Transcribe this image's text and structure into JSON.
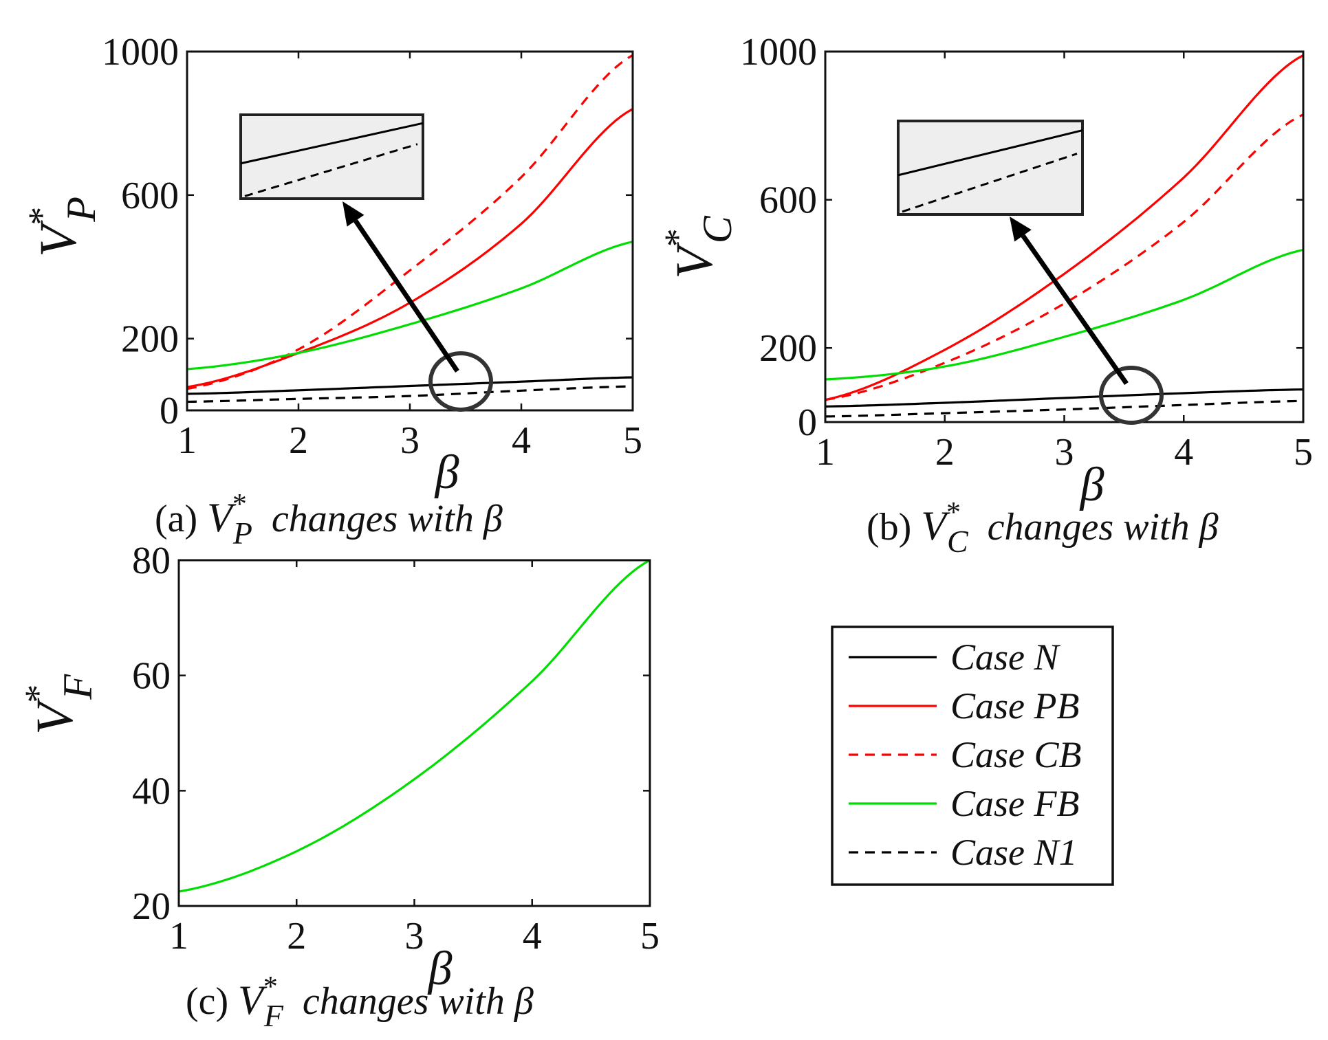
{
  "chart_data": [
    {
      "panel": "a",
      "type": "line",
      "xlabel": "β",
      "ylabel": {
        "base": "V",
        "sup": "*",
        "sub": "P"
      },
      "caption": {
        "prefix": "(a)",
        "base": "V",
        "sup": "*",
        "sub": "P",
        "text": "changes with",
        "symbol": "β"
      },
      "xlim": [
        1,
        5
      ],
      "ylim": [
        0,
        1000
      ],
      "xticks": [
        "1",
        "2",
        "3",
        "4",
        "5"
      ],
      "yticks": [
        "0",
        "200",
        "600",
        "1000"
      ],
      "x": [
        1,
        2,
        3,
        4,
        5
      ],
      "series": [
        {
          "name": "Case N",
          "color": "#000000",
          "dash": "solid",
          "values": [
            46,
            56,
            68,
            80,
            92
          ]
        },
        {
          "name": "Case PB",
          "color": "#ff0000",
          "dash": "solid",
          "values": [
            65,
            160,
            300,
            520,
            840
          ]
        },
        {
          "name": "Case CB",
          "color": "#ff0000",
          "dash": "dashed",
          "values": [
            60,
            170,
            390,
            650,
            990
          ]
        },
        {
          "name": "Case FB",
          "color": "#00dd00",
          "dash": "solid",
          "values": [
            115,
            160,
            240,
            340,
            470
          ]
        },
        {
          "name": "Case N1",
          "color": "#000000",
          "dash": "dashed",
          "values": [
            24,
            32,
            40,
            55,
            67
          ]
        }
      ]
    },
    {
      "panel": "b",
      "type": "line",
      "xlabel": "β",
      "ylabel": {
        "base": "V",
        "sup": "*",
        "sub": "C"
      },
      "caption": {
        "prefix": "(b)",
        "base": "V",
        "sup": "*",
        "sub": "C",
        "text": "changes with",
        "symbol": "β"
      },
      "xlim": [
        1,
        5
      ],
      "ylim": [
        0,
        1000
      ],
      "xticks": [
        "1",
        "2",
        "3",
        "4",
        "5"
      ],
      "yticks": [
        "0",
        "200",
        "600",
        "1000"
      ],
      "x": [
        1,
        2,
        3,
        4,
        5
      ],
      "series": [
        {
          "name": "Case N",
          "color": "#000000",
          "dash": "solid",
          "values": [
            42,
            52,
            65,
            78,
            88
          ]
        },
        {
          "name": "Case PB",
          "color": "#ff0000",
          "dash": "solid",
          "values": [
            60,
            195,
            400,
            660,
            990
          ]
        },
        {
          "name": "Case CB",
          "color": "#ff0000",
          "dash": "dashed",
          "values": [
            60,
            160,
            320,
            540,
            830
          ]
        },
        {
          "name": "Case FB",
          "color": "#00dd00",
          "dash": "solid",
          "values": [
            115,
            150,
            230,
            330,
            465
          ]
        },
        {
          "name": "Case N1",
          "color": "#000000",
          "dash": "dashed",
          "values": [
            15,
            24,
            34,
            46,
            57
          ]
        }
      ]
    },
    {
      "panel": "c",
      "type": "line",
      "xlabel": "β",
      "ylabel": {
        "base": "V",
        "sup": "*",
        "sub": "F"
      },
      "caption": {
        "prefix": "(c)",
        "base": "V",
        "sup": "*",
        "sub": "F",
        "text": "changes with",
        "symbol": "β"
      },
      "xlim": [
        1,
        5
      ],
      "ylim": [
        20,
        80
      ],
      "xticks": [
        "1",
        "2",
        "3",
        "4",
        "5"
      ],
      "yticks": [
        "20",
        "40",
        "60",
        "80"
      ],
      "x": [
        1,
        2,
        3,
        4,
        5
      ],
      "series": [
        {
          "name": "Case FB",
          "color": "#00dd00",
          "dash": "solid",
          "values": [
            22.5,
            29.5,
            42,
            59,
            80
          ]
        }
      ]
    }
  ],
  "legend": [
    {
      "label": "Case N",
      "color": "#000000",
      "dash": "solid"
    },
    {
      "label": "Case PB",
      "color": "#ff0000",
      "dash": "solid"
    },
    {
      "label": "Case CB",
      "color": "#ff0000",
      "dash": "dashed"
    },
    {
      "label": "Case FB",
      "color": "#00dd00",
      "dash": "solid"
    },
    {
      "label": "Case N1",
      "color": "#000000",
      "dash": "dashed"
    }
  ]
}
